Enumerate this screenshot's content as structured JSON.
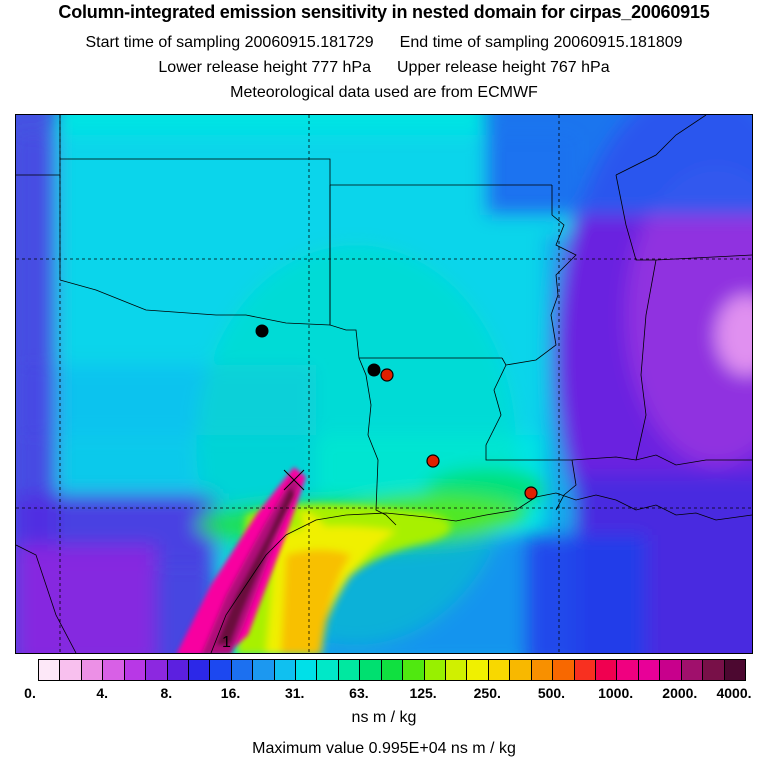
{
  "header": {
    "title": "Column-integrated emission sensitivity in nested domain for cirpas_20060915",
    "start_time": "Start time of sampling 20060915.181729",
    "end_time": "End time of sampling 20060915.181809",
    "lower_release": "Lower release height  777 hPa",
    "upper_release": "Upper release height  767 hPa",
    "met_data": "Meteorological data used are from ECMWF"
  },
  "map": {
    "release_label": "1",
    "colors": {
      "background": "#00e4e4",
      "state_lines": "#000000",
      "grid_lines": "#000000",
      "point_black": "#000000",
      "point_red": "#e02000"
    },
    "markers": [
      {
        "type": "black-dot"
      },
      {
        "type": "black-dot"
      },
      {
        "type": "red-dot"
      },
      {
        "type": "red-dot"
      },
      {
        "type": "red-dot"
      }
    ],
    "release_marker": "x-cross"
  },
  "colorbar": {
    "colors": [
      "#fde8f8",
      "#f8c0ee",
      "#ec90e6",
      "#d860e6",
      "#b838e6",
      "#8c28e0",
      "#5c20e0",
      "#2c28e8",
      "#1c48f0",
      "#1c70f0",
      "#1c98f0",
      "#10c0f0",
      "#00e0e8",
      "#00e8c8",
      "#00e8a0",
      "#00e070",
      "#10e040",
      "#50e810",
      "#98f000",
      "#d0f000",
      "#f0f000",
      "#f8d800",
      "#f8b800",
      "#f89000",
      "#f86800",
      "#f83020",
      "#f00050",
      "#f00080",
      "#e80098",
      "#c8008c",
      "#a0106c",
      "#781048",
      "#4c0830"
    ],
    "ticks": [
      "0.",
      "4.",
      "8.",
      "16.",
      "31.",
      "63.",
      "125.",
      "250.",
      "500.",
      "1000.",
      "2000.",
      "4000."
    ],
    "unit": "ns m / kg",
    "max_value": "Maximum value  0.995E+04 ns m / kg"
  }
}
